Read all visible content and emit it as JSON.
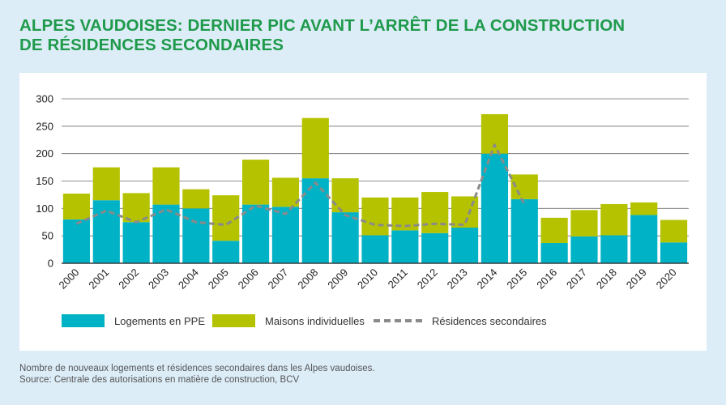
{
  "title_lines": [
    "ALPES VAUDOISES: DERNIER PIC AVANT L’ARRÊT DE LA CONSTRUCTION",
    "DE RÉSIDENCES SECONDAIRES"
  ],
  "caption_lines": [
    "Nombre de nouveaux logements et résidences secondaires dans les Alpes vaudoises.",
    "Source: Centrale des autorisations en matière de construction, BCV"
  ],
  "colors": {
    "ppe": "#00b2c6",
    "maisons": "#b5c200",
    "residences": "#8a8a8a",
    "title": "#1f9a4b"
  },
  "chart_data": {
    "type": "bar",
    "stacked": true,
    "categories": [
      "2000",
      "2001",
      "2002",
      "2003",
      "2004",
      "2005",
      "2006",
      "2007",
      "2008",
      "2009",
      "2010",
      "2011",
      "2012",
      "2013",
      "2014",
      "2015",
      "2016",
      "2017",
      "2018",
      "2019",
      "2020"
    ],
    "series": [
      {
        "name": "Logements en PPE",
        "kind": "bar",
        "values": [
          80,
          115,
          75,
          107,
          100,
          41,
          107,
          103,
          155,
          93,
          51,
          60,
          55,
          65,
          200,
          117,
          37,
          49,
          51,
          88,
          38
        ]
      },
      {
        "name": "Maisons individuelles",
        "kind": "bar",
        "values": [
          47,
          60,
          53,
          68,
          35,
          83,
          82,
          53,
          110,
          62,
          69,
          60,
          75,
          57,
          72,
          45,
          46,
          48,
          57,
          23,
          41
        ]
      },
      {
        "name": "Résidences secondaires",
        "kind": "line",
        "style": "dashed",
        "values": [
          72,
          96,
          75,
          98,
          75,
          70,
          105,
          90,
          147,
          88,
          70,
          68,
          72,
          70,
          216,
          107,
          null,
          null,
          null,
          null,
          null
        ]
      }
    ],
    "yticks": [
      0,
      50,
      100,
      150,
      200,
      250,
      300
    ],
    "ylim": [
      0,
      300
    ],
    "grid": true,
    "legend_position": "bottom"
  }
}
